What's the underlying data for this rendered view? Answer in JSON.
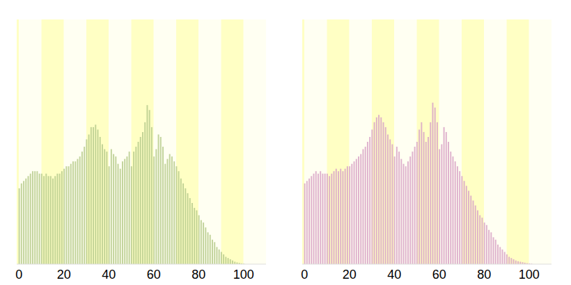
{
  "chart_data": [
    {
      "type": "bar",
      "color": "#b9cc8e",
      "xlim": [
        -1,
        110
      ],
      "xticks": [
        0,
        20,
        40,
        60,
        80,
        100
      ],
      "ylim": [
        0,
        100
      ],
      "tick_labels": "x",
      "grid": false,
      "x": [
        0,
        1,
        2,
        3,
        4,
        5,
        6,
        7,
        8,
        9,
        10,
        11,
        12,
        13,
        14,
        15,
        16,
        17,
        18,
        19,
        20,
        21,
        22,
        23,
        24,
        25,
        26,
        27,
        28,
        29,
        30,
        31,
        32,
        33,
        34,
        35,
        36,
        37,
        38,
        39,
        40,
        41,
        42,
        43,
        44,
        45,
        46,
        47,
        48,
        49,
        50,
        51,
        52,
        53,
        54,
        55,
        56,
        57,
        58,
        59,
        60,
        61,
        62,
        63,
        64,
        65,
        66,
        67,
        68,
        69,
        70,
        71,
        72,
        73,
        74,
        75,
        76,
        77,
        78,
        79,
        80,
        81,
        82,
        83,
        84,
        85,
        86,
        87,
        88,
        89,
        90,
        91,
        92,
        93,
        94,
        95,
        96,
        97,
        98,
        99,
        100
      ],
      "values": [
        31,
        33,
        34,
        35,
        36,
        37,
        38,
        38,
        38,
        37,
        37,
        36,
        37,
        36,
        36,
        35,
        36,
        37,
        37,
        38,
        39,
        40,
        40,
        41,
        42,
        42,
        43,
        44,
        46,
        48,
        51,
        53,
        56,
        56,
        57,
        55,
        52,
        49,
        47,
        46,
        40,
        47,
        45,
        44,
        41,
        39,
        42,
        43,
        44,
        46,
        40,
        46,
        48,
        50,
        52,
        54,
        58,
        65,
        63,
        56,
        44,
        47,
        53,
        52,
        48,
        41,
        43,
        45,
        44,
        42,
        40,
        38,
        35,
        33,
        31,
        29,
        27,
        25,
        23,
        22,
        20,
        18,
        17,
        15,
        13,
        12,
        10,
        9,
        7,
        6,
        5,
        4,
        3,
        2.5,
        2,
        1.5,
        1,
        0.7,
        0.5,
        0.3,
        0.2
      ]
    },
    {
      "type": "bar",
      "color": "#d9a6c8",
      "xlim": [
        -1,
        110
      ],
      "xticks": [
        0,
        20,
        40,
        60,
        80,
        100
      ],
      "ylim": [
        0,
        100
      ],
      "tick_labels": "x",
      "grid": false,
      "x": [
        0,
        1,
        2,
        3,
        4,
        5,
        6,
        7,
        8,
        9,
        10,
        11,
        12,
        13,
        14,
        15,
        16,
        17,
        18,
        19,
        20,
        21,
        22,
        23,
        24,
        25,
        26,
        27,
        28,
        29,
        30,
        31,
        32,
        33,
        34,
        35,
        36,
        37,
        38,
        39,
        40,
        41,
        42,
        43,
        44,
        45,
        46,
        47,
        48,
        49,
        50,
        51,
        52,
        53,
        54,
        55,
        56,
        57,
        58,
        59,
        60,
        61,
        62,
        63,
        64,
        65,
        66,
        67,
        68,
        69,
        70,
        71,
        72,
        73,
        74,
        75,
        76,
        77,
        78,
        79,
        80,
        81,
        82,
        83,
        84,
        85,
        86,
        87,
        88,
        89,
        90,
        91,
        92,
        93,
        94,
        95,
        96,
        97,
        98,
        99,
        100,
        101
      ],
      "values": [
        33,
        34,
        35,
        36,
        37,
        38,
        37,
        38,
        37,
        37,
        37,
        36,
        37,
        38,
        39,
        38,
        39,
        38,
        39,
        40,
        40,
        41,
        42,
        43,
        44,
        45,
        47,
        48,
        50,
        52,
        55,
        58,
        60,
        61,
        60,
        58,
        56,
        53,
        51,
        49,
        44,
        48,
        46,
        43,
        41,
        40,
        42,
        44,
        46,
        48,
        50,
        55,
        58,
        54,
        50,
        52,
        58,
        66,
        64,
        58,
        47,
        49,
        56,
        54,
        50,
        46,
        44,
        42,
        40,
        38,
        36,
        34,
        32,
        30,
        28,
        26,
        24,
        22,
        20,
        19,
        17,
        16,
        14,
        13,
        11,
        10,
        8,
        7,
        6,
        5,
        4,
        3,
        2.5,
        2,
        1.5,
        1.2,
        1,
        0.8,
        0.6,
        0.4,
        0.3,
        0.2
      ]
    }
  ]
}
